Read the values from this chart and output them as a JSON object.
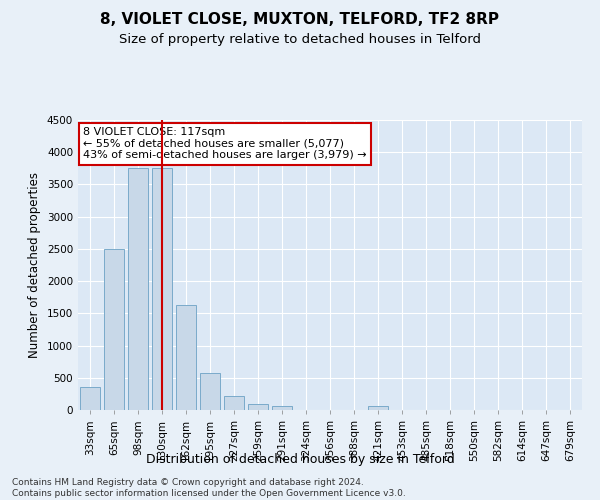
{
  "title": "8, VIOLET CLOSE, MUXTON, TELFORD, TF2 8RP",
  "subtitle": "Size of property relative to detached houses in Telford",
  "xlabel": "Distribution of detached houses by size in Telford",
  "ylabel": "Number of detached properties",
  "categories": [
    "33sqm",
    "65sqm",
    "98sqm",
    "130sqm",
    "162sqm",
    "195sqm",
    "227sqm",
    "259sqm",
    "291sqm",
    "324sqm",
    "356sqm",
    "388sqm",
    "421sqm",
    "453sqm",
    "485sqm",
    "518sqm",
    "550sqm",
    "582sqm",
    "614sqm",
    "647sqm",
    "679sqm"
  ],
  "values": [
    350,
    2500,
    3750,
    3750,
    1630,
    580,
    220,
    100,
    55,
    0,
    0,
    0,
    55,
    0,
    0,
    0,
    0,
    0,
    0,
    0,
    0
  ],
  "bar_color": "#c8d8e8",
  "bar_edge_color": "#7aaaca",
  "vline_x_index": 3,
  "vline_color": "#cc0000",
  "annotation_text": "8 VIOLET CLOSE: 117sqm\n← 55% of detached houses are smaller (5,077)\n43% of semi-detached houses are larger (3,979) →",
  "annotation_box_color": "#ffffff",
  "annotation_box_edge_color": "#cc0000",
  "ylim": [
    0,
    4500
  ],
  "yticks": [
    0,
    500,
    1000,
    1500,
    2000,
    2500,
    3000,
    3500,
    4000,
    4500
  ],
  "bg_color": "#e8f0f8",
  "plot_bg_color": "#dce8f5",
  "footer": "Contains HM Land Registry data © Crown copyright and database right 2024.\nContains public sector information licensed under the Open Government Licence v3.0.",
  "title_fontsize": 11,
  "subtitle_fontsize": 9.5,
  "xlabel_fontsize": 9,
  "ylabel_fontsize": 8.5,
  "tick_fontsize": 7.5,
  "footer_fontsize": 6.5,
  "annot_fontsize": 8
}
